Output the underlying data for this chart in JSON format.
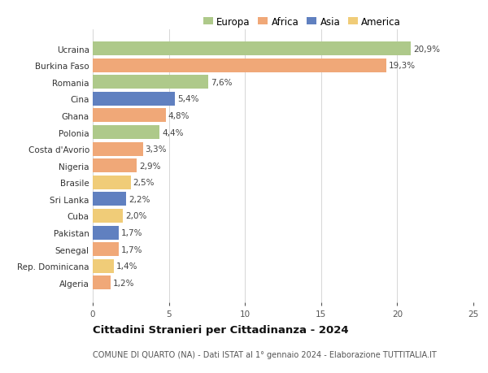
{
  "categories": [
    "Ucraina",
    "Burkina Faso",
    "Romania",
    "Cina",
    "Ghana",
    "Polonia",
    "Costa d'Avorio",
    "Nigeria",
    "Brasile",
    "Sri Lanka",
    "Cuba",
    "Pakistan",
    "Senegal",
    "Rep. Dominicana",
    "Algeria"
  ],
  "values": [
    20.9,
    19.3,
    7.6,
    5.4,
    4.8,
    4.4,
    3.3,
    2.9,
    2.5,
    2.2,
    2.0,
    1.7,
    1.7,
    1.4,
    1.2
  ],
  "labels": [
    "20,9%",
    "19,3%",
    "7,6%",
    "5,4%",
    "4,8%",
    "4,4%",
    "3,3%",
    "2,9%",
    "2,5%",
    "2,2%",
    "2,0%",
    "1,7%",
    "1,7%",
    "1,4%",
    "1,2%"
  ],
  "continents": [
    "Europa",
    "Africa",
    "Europa",
    "Asia",
    "Africa",
    "Europa",
    "Africa",
    "Africa",
    "America",
    "Asia",
    "America",
    "Asia",
    "Africa",
    "America",
    "Africa"
  ],
  "continent_colors": {
    "Europa": "#aec98a",
    "Africa": "#f0a878",
    "Asia": "#6080c0",
    "America": "#f0cc78"
  },
  "legend_order": [
    "Europa",
    "Africa",
    "Asia",
    "America"
  ],
  "xlim": [
    0,
    25
  ],
  "xticks": [
    0,
    5,
    10,
    15,
    20,
    25
  ],
  "title": "Cittadini Stranieri per Cittadinanza - 2024",
  "subtitle": "COMUNE DI QUARTO (NA) - Dati ISTAT al 1° gennaio 2024 - Elaborazione TUTTITALIA.IT",
  "background_color": "#ffffff",
  "bar_height": 0.82,
  "label_fontsize": 7.5,
  "tick_fontsize": 7.5,
  "title_fontsize": 9.5,
  "subtitle_fontsize": 7.0,
  "legend_fontsize": 8.5
}
